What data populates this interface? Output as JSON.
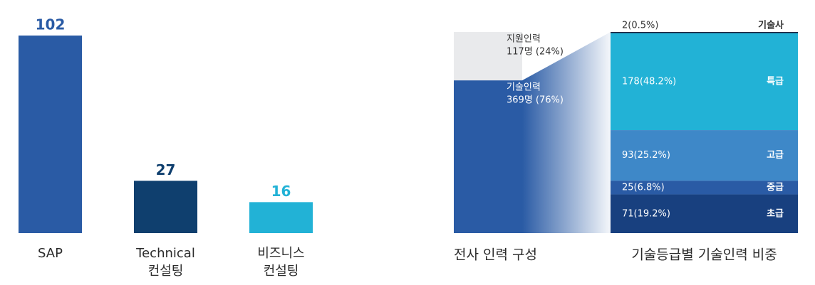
{
  "chart_data": [
    {
      "type": "bar",
      "categories": [
        "SAP",
        "Technical\n컨설팅",
        "비즈니스\n컨설팅"
      ],
      "values": [
        102,
        27,
        16
      ],
      "colors": [
        "#2a5ba5",
        "#0f3f6e",
        "#22b2d6"
      ]
    },
    {
      "type": "stacked-bar",
      "title": "전사 인력 구성",
      "series": [
        {
          "name": "지원인력",
          "color": "#e9eaec",
          "values": [
            117
          ],
          "value_labels": [
            "117명 (24%)"
          ]
        },
        {
          "name": "기술인력",
          "color": "#2a5ba5",
          "values": [
            369
          ],
          "value_labels": [
            "369명 (76%)"
          ]
        }
      ]
    },
    {
      "type": "stacked-bar",
      "title": "기술등급별 기술인력 비중",
      "series": [
        {
          "name": "기술사",
          "color": "#1b1f3b",
          "values": [
            2
          ],
          "value_labels": [
            "2(0.5%)"
          ]
        },
        {
          "name": "특급",
          "color": "#22b2d6",
          "values": [
            178
          ],
          "value_labels": [
            "178(48.2%)"
          ]
        },
        {
          "name": "고급",
          "color": "#3e88c8",
          "values": [
            93
          ],
          "value_labels": [
            "93(25.2%)"
          ]
        },
        {
          "name": "중급",
          "color": "#2a5ba5",
          "values": [
            25
          ],
          "value_labels": [
            "25(6.8%)"
          ]
        },
        {
          "name": "초급",
          "color": "#18407f",
          "values": [
            71
          ],
          "value_labels": [
            "71(19.2%)"
          ]
        }
      ]
    }
  ]
}
